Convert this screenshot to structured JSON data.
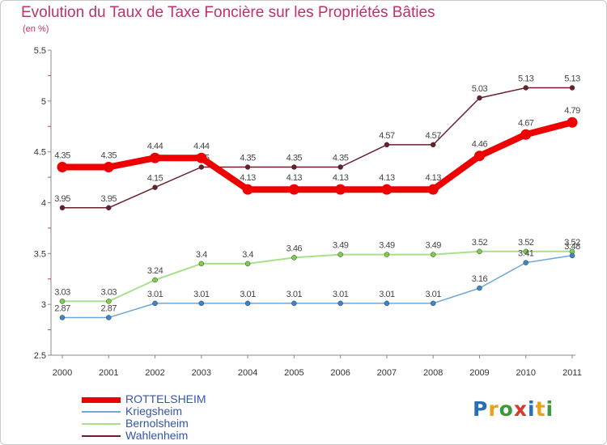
{
  "header": {
    "title": "Evolution du Taux de Taxe Foncière sur les Propriétés Bâties",
    "unit": "(en %)"
  },
  "logo": {
    "chars": [
      "P",
      "r",
      "o",
      "x",
      "i",
      "t",
      "i"
    ],
    "colors": [
      "#2a6fb5",
      "#e8a21a",
      "#3a9a3a",
      "#d43a2a",
      "#2a6fb5",
      "#e8a21a",
      "#3a9a3a"
    ]
  },
  "chart_data": {
    "type": "line",
    "title": "Evolution du Taux de Taxe Foncière sur les Propriétés Bâties",
    "ylabel": "(en %)",
    "xlabel": "",
    "ylim": [
      2.5,
      5.5
    ],
    "yticks": [
      "2.5",
      "3",
      "3.5",
      "4",
      "4.5",
      "5",
      "5.5"
    ],
    "categories": [
      "2000",
      "2001",
      "2002",
      "2003",
      "2004",
      "2005",
      "2006",
      "2007",
      "2008",
      "2009",
      "2010",
      "2011"
    ],
    "series": [
      {
        "name": "Wahlenheim",
        "color": "#6b1f2a",
        "marker": "#6b1f2a",
        "width": 1.5,
        "markerR": 3,
        "values": [
          3.95,
          3.95,
          4.15,
          4.35,
          4.35,
          4.35,
          4.35,
          4.57,
          4.57,
          5.03,
          5.13,
          5.13
        ],
        "labels": [
          "3.95",
          "3.95",
          "4.15",
          "4.35",
          "4.35",
          "4.35",
          "4.35",
          "4.57",
          "4.57",
          "5.03",
          "5.13",
          "5.13"
        ]
      },
      {
        "name": "Bernolsheim",
        "color": "#a8e08a",
        "marker": "#7ccf4a",
        "width": 2,
        "markerR": 3,
        "values": [
          3.03,
          3.03,
          3.24,
          3.4,
          3.4,
          3.46,
          3.49,
          3.49,
          3.49,
          3.52,
          3.52,
          3.52
        ],
        "labels": [
          "3.03",
          "3.03",
          "3.24",
          "3.4",
          "3.4",
          "3.46",
          "3.49",
          "3.49",
          "3.49",
          "3.52",
          "3.52",
          "3.52"
        ]
      },
      {
        "name": "Kriegsheim",
        "color": "#6fa8d8",
        "marker": "#3a86cc",
        "width": 1.5,
        "markerR": 3,
        "values": [
          2.87,
          2.87,
          3.01,
          3.01,
          3.01,
          3.01,
          3.01,
          3.01,
          3.01,
          3.16,
          3.41,
          3.48
        ],
        "labels": [
          "2.87",
          "2.87",
          "3.01",
          "3.01",
          "3.01",
          "3.01",
          "3.01",
          "3.01",
          "3.01",
          "3.16",
          "3.41",
          "3.48"
        ]
      },
      {
        "name": "ROTTELSHEIM",
        "color": "#ee0000",
        "marker": "#ee0000",
        "width": 8,
        "markerR": 6.5,
        "values": [
          4.35,
          4.35,
          4.44,
          4.44,
          4.13,
          4.13,
          4.13,
          4.13,
          4.13,
          4.46,
          4.67,
          4.79
        ],
        "labels": [
          "4.35",
          "4.35",
          "4.44",
          "4.44",
          "4.13",
          "4.13",
          "4.13",
          "4.13",
          "4.13",
          "4.46",
          "4.67",
          "4.79"
        ]
      }
    ],
    "legend": [
      {
        "name": "ROTTELSHEIM",
        "color": "#ee0000",
        "thick": 7
      },
      {
        "name": "Kriegsheim",
        "color": "#6fa8d8",
        "thick": 2
      },
      {
        "name": "Bernolsheim",
        "color": "#a8e08a",
        "thick": 2
      },
      {
        "name": "Wahlenheim",
        "color": "#6b1f2a",
        "thick": 2
      }
    ]
  }
}
